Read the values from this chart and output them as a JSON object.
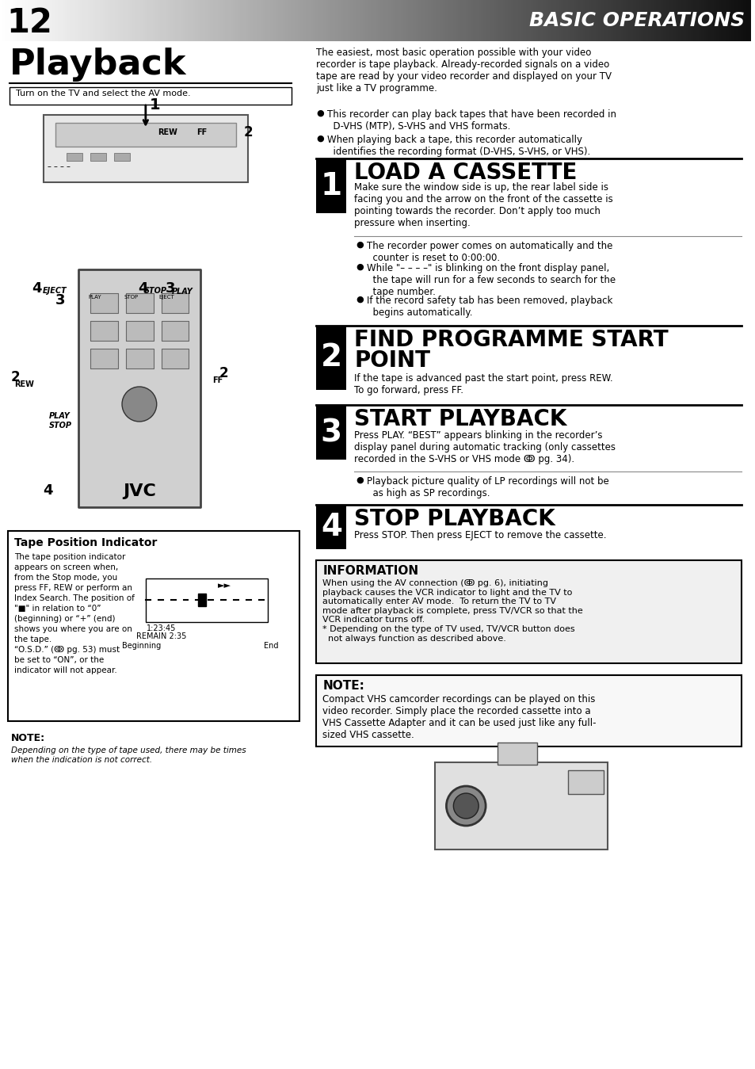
{
  "page_number": "12",
  "header_title": "BASIC OPERATIONS",
  "section_title": "Playback",
  "subtitle_box": "Turn on the TV and select the AV mode.",
  "intro_text": "The easiest, most basic operation possible with your video\nrecorder is tape playback. Already-recorded signals on a video\ntape are read by your video recorder and displayed on your TV\njust like a TV programme.",
  "intro_bullets": [
    "This recorder can play back tapes that have been recorded in\n  D-VHS (MTP), S-VHS and VHS formats.",
    "When playing back a tape, this recorder automatically\n  identifies the recording format (D-VHS, S-VHS, or VHS)."
  ],
  "step1_title": "LOAD A CASSETTE",
  "step1_num": "1",
  "step1_body": "Make sure the window side is up, the rear label side is\nfacing you and the arrow on the front of the cassette is\npointing towards the recorder. Don’t apply too much\npressure when inserting.",
  "step1_bullets": [
    "The recorder power comes on automatically and the\n  counter is reset to 0:00:00.",
    "While \"– – – –\" is blinking on the front display panel,\n  the tape will run for a few seconds to search for the\n  tape number.",
    "If the record safety tab has been removed, playback\n  begins automatically."
  ],
  "step2_title": "FIND PROGRAMME START\nPOINT",
  "step2_num": "2",
  "step2_body": "If the tape is advanced past the start point, press REW.\nTo go forward, press FF.",
  "step3_title": "START PLAYBACK",
  "step3_num": "3",
  "step3_body": "Press PLAY. “BEST” appears blinking in the recorder’s\ndisplay panel during automatic tracking (only cassettes\nrecorded in the S-VHS or VHS mode ↂ pg. 34).",
  "step3_bullets": [
    "Playback picture quality of LP recordings will not be\n  as high as SP recordings."
  ],
  "step4_title": "STOP PLAYBACK",
  "step4_num": "4",
  "step4_body": "Press STOP. Then press EJECT to remove the cassette.",
  "info_title": "INFORMATION",
  "info_body": "When using the AV connection (ↂ pg. 6), initiating\nplayback causes the VCR indicator to light and the TV to\nautomatically enter AV mode.  To return the TV to TV\nmode after playback is complete, press TV/VCR so that the\nVCR indicator turns off.\n* Depending on the type of TV used, TV/VCR button does\n  not always function as described above.",
  "note_title": "NOTE:",
  "note_body": "Compact VHS camcorder recordings can be played on this\nvideo recorder. Simply place the recorded cassette into a\nVHS Cassette Adapter and it can be used just like any full-\nsized VHS cassette.",
  "tape_title": "Tape Position Indicator",
  "tape_body": "The tape position indicator\nappears on screen when,\nfrom the Stop mode, you\npress FF, REW or perform an\nIndex Search. The position of\n\"■\" in relation to “0”\n(beginning) or “+” (end)\nshows you where you are on\nthe tape.\n“O.S.D.” (ↂ pg. 53) must\nbe set to “ON”, or the\nindicator will not appear.",
  "tape_bottom": "Beginning                                                     End",
  "bottom_note_title": "NOTE:",
  "bottom_note_body": "Depending on the type of tape used, there may be times\nwhen the indication is not correct.",
  "bg_color": "#ffffff",
  "header_bg_gradient": true,
  "text_color": "#000000",
  "step_label_bg": "#000000",
  "step_label_fg": "#ffffff"
}
